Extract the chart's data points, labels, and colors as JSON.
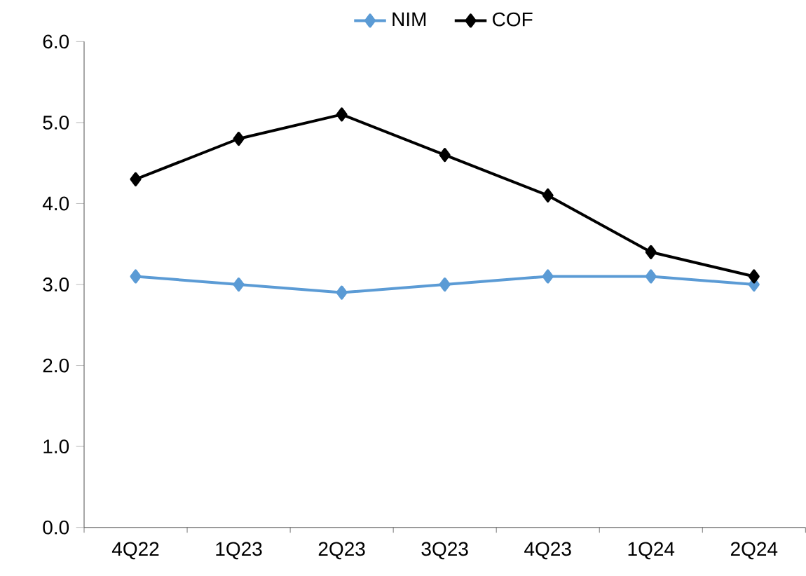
{
  "chart_data": {
    "type": "line",
    "categories": [
      "4Q22",
      "1Q23",
      "2Q23",
      "3Q23",
      "4Q23",
      "1Q24",
      "2Q24"
    ],
    "series": [
      {
        "name": "NIM",
        "color": "#5b9bd5",
        "values": [
          3.1,
          3.0,
          2.9,
          3.0,
          3.1,
          3.1,
          3.0
        ]
      },
      {
        "name": "COF",
        "color": "#000000",
        "values": [
          4.3,
          4.8,
          5.1,
          4.6,
          4.1,
          3.4,
          3.1
        ]
      }
    ],
    "ylim": [
      0,
      6
    ],
    "yticks": [
      {
        "value": 0,
        "label": "0.0"
      },
      {
        "value": 1,
        "label": "1.0"
      },
      {
        "value": 2,
        "label": "2.0"
      },
      {
        "value": 3,
        "label": "3.0"
      },
      {
        "value": 4,
        "label": "4.0"
      },
      {
        "value": 5,
        "label": "5.0"
      },
      {
        "value": 6,
        "label": "6.0"
      }
    ],
    "grid": false,
    "legend": "top",
    "marker": "diamond",
    "line_style": "solid"
  }
}
